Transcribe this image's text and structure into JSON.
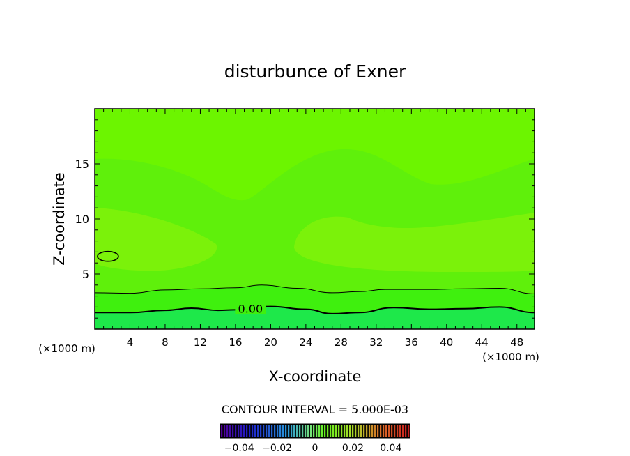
{
  "chart_data": {
    "type": "contour",
    "title": "disturbunce of Exner",
    "xlabel": "X-coordinate",
    "ylabel": "Z-coordinate",
    "x_unit_left": "(×1000 m)",
    "x_unit_right": "(×1000 m)",
    "xlim": [
      0,
      50
    ],
    "ylim": [
      0,
      20
    ],
    "x_ticks": [
      4,
      8,
      12,
      16,
      20,
      24,
      28,
      32,
      36,
      40,
      44,
      48
    ],
    "y_ticks": [
      5,
      10,
      15
    ],
    "contour_interval_text": "CONTOUR INTERVAL = 5.000E-03",
    "contour_label": "0.00",
    "zero_contour_height": [
      [
        0,
        1.5
      ],
      [
        4,
        1.5
      ],
      [
        8,
        1.7
      ],
      [
        11,
        1.9
      ],
      [
        14,
        1.7
      ],
      [
        16,
        1.75
      ],
      [
        20,
        2.05
      ],
      [
        24,
        1.8
      ],
      [
        27,
        1.4
      ],
      [
        30,
        1.5
      ],
      [
        34,
        1.95
      ],
      [
        38,
        1.8
      ],
      [
        42,
        1.85
      ],
      [
        46,
        2.0
      ],
      [
        50,
        1.5
      ]
    ],
    "lower_contour_height": [
      [
        0,
        3.3
      ],
      [
        4,
        3.25
      ],
      [
        8,
        3.55
      ],
      [
        12,
        3.65
      ],
      [
        16,
        3.75
      ],
      [
        19,
        4.0
      ],
      [
        23,
        3.7
      ],
      [
        27,
        3.3
      ],
      [
        30,
        3.4
      ],
      [
        33,
        3.6
      ],
      [
        38,
        3.6
      ],
      [
        42,
        3.65
      ],
      [
        46,
        3.7
      ],
      [
        50,
        3.2
      ]
    ],
    "closed_contour_center": [
      1.5,
      6.6
    ],
    "colorbar": {
      "min": -0.05,
      "max": 0.05,
      "tick_values": [
        -0.04,
        -0.02,
        0,
        0.02,
        0.04
      ],
      "tick_labels": [
        "−0.04",
        "−0.02",
        "0",
        "0.02",
        "0.04"
      ]
    },
    "colors": {
      "band_ground": "#1ee84a",
      "band_low": "#3ff00e",
      "band_mid": "#5ff00b",
      "band_upper": "#6cf500",
      "band_blob": "#7bf20a",
      "contour": "#000000"
    }
  }
}
